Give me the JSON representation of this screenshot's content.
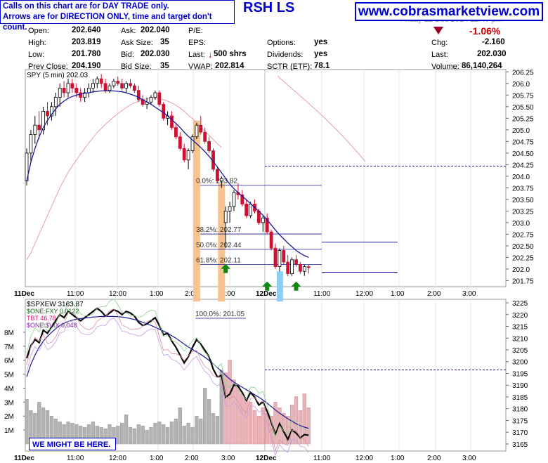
{
  "header": {
    "note_line1": "Calls on this chart are for DAY TRADE only.",
    "note_line2": "Arrows are for DIRECTION ONLY, time and target don't count.",
    "title_fragment": "RSH LS",
    "site": "www.cobrasmarketview.com",
    "date_fragment": "Friday 12 Dec 2014 12:4? pm"
  },
  "quote": {
    "open_label": "Open:",
    "open": "202.640",
    "high_label": "High:",
    "high": "203.819",
    "low_label": "Low:",
    "low": "201.780",
    "prev_label": "Prev Close:",
    "prev": "204.190",
    "ask_label": "Ask:",
    "ask": "202.040",
    "asksize_label": "Ask Size:",
    "asksize": "35",
    "bid_label": "Bid:",
    "bid": "202.030",
    "bidsize_label": "Bid Size:",
    "bidsize": "35",
    "pe_label": "P/E:",
    "eps_label": "EPS:",
    "last_label": "Last:",
    "last_size": "500 shrs",
    "vwap_label": "VWAP:",
    "vwap": "202.814",
    "options_label": "Options:",
    "options": "yes",
    "dividends_label": "Dividends:",
    "dividends": "yes",
    "sctr_label": "SCTR (ETF):",
    "sctr": "78.1",
    "chg_pct": "-1.06%",
    "chg_label": "Chg:",
    "chg": "-2.160",
    "last2_label": "Last:",
    "last2": "202.030",
    "volume_label": "Volume:",
    "volume": "86,140,264"
  },
  "colors": {
    "up": "#ffffff",
    "down": "#cc1133",
    "ma": "#1a1a99",
    "ma_slow": "#e2a0a8",
    "accent": "#0000cc",
    "orange": "#f7c48f",
    "blue": "#8ecdf0",
    "green": "#118811",
    "vol_grey": "#b3b3b3",
    "vol_pink": "#e9b3b8"
  },
  "chart_data": [
    {
      "type": "candlestick",
      "legend": "SPY (5 min) 202.03",
      "y_ticks": [
        201.75,
        202.0,
        202.25,
        202.5,
        202.75,
        203.0,
        203.25,
        203.5,
        203.75,
        204.0,
        204.25,
        204.5,
        204.75,
        205.0,
        205.25,
        205.5,
        205.75,
        206.0,
        206.25
      ],
      "y_tick_labels": [
        "201.75",
        "202.0",
        "202.25",
        "202.50",
        "202.75",
        "203.0",
        "203.25",
        "203.50",
        "203.75",
        "204.0",
        "204.25",
        "204.50",
        "204.75",
        "205.0",
        "205.25",
        "205.50",
        "205.75",
        "206.0",
        "206.25"
      ],
      "ylim": [
        201.62,
        206.3
      ],
      "x_labels": [
        "11Dec",
        "11:00",
        "12:00",
        "1:00",
        "2:00",
        "3:00",
        "12Dec",
        "11:00",
        "12:00",
        "1:00",
        "2:00",
        "3:00"
      ],
      "fib_labels": [
        "0.0%: 203.82",
        "38.2%: 202.77",
        "50.0%: 202.44",
        "61.8%: 202.11",
        "100.0%: 201.05"
      ],
      "fib_values": [
        203.82,
        202.77,
        202.44,
        202.11,
        201.05
      ],
      "ref_lines": [
        204.22,
        202.58,
        201.93
      ],
      "candles": [
        [
          203.9,
          204.6,
          203.8,
          204.5
        ],
        [
          204.5,
          205.0,
          204.3,
          204.9
        ],
        [
          204.9,
          205.3,
          204.7,
          205.1
        ],
        [
          205.1,
          205.4,
          204.8,
          205.0
        ],
        [
          205.0,
          205.5,
          204.9,
          205.4
        ],
        [
          205.4,
          205.6,
          205.1,
          205.3
        ],
        [
          205.3,
          205.6,
          205.2,
          205.5
        ],
        [
          205.5,
          205.8,
          205.3,
          205.7
        ],
        [
          205.7,
          206.0,
          205.5,
          205.9
        ],
        [
          205.9,
          206.05,
          205.7,
          205.8
        ],
        [
          205.8,
          206.1,
          205.7,
          206.0
        ],
        [
          206.0,
          206.1,
          205.8,
          205.9
        ],
        [
          205.9,
          206.0,
          205.7,
          205.8
        ],
        [
          205.8,
          205.9,
          205.6,
          205.7
        ],
        [
          205.7,
          205.9,
          205.6,
          205.8
        ],
        [
          205.8,
          206.0,
          205.7,
          205.9
        ],
        [
          205.9,
          206.1,
          205.8,
          206.0
        ],
        [
          206.0,
          206.15,
          205.9,
          206.1
        ],
        [
          206.1,
          206.2,
          205.9,
          206.0
        ],
        [
          206.0,
          206.1,
          205.8,
          205.85
        ],
        [
          205.85,
          206.0,
          205.8,
          205.95
        ],
        [
          205.95,
          206.1,
          205.9,
          206.05
        ],
        [
          206.05,
          206.15,
          205.95,
          206.0
        ],
        [
          206.0,
          206.1,
          205.85,
          205.9
        ],
        [
          205.9,
          206.05,
          205.8,
          206.0
        ],
        [
          206.0,
          206.1,
          205.9,
          205.95
        ],
        [
          205.95,
          206.0,
          205.8,
          205.85
        ],
        [
          205.85,
          205.95,
          205.6,
          205.65
        ],
        [
          205.65,
          205.75,
          205.5,
          205.55
        ],
        [
          205.55,
          205.7,
          205.45,
          205.6
        ],
        [
          205.6,
          205.75,
          205.55,
          205.7
        ],
        [
          205.7,
          205.85,
          205.65,
          205.8
        ],
        [
          205.8,
          205.85,
          205.5,
          205.55
        ],
        [
          205.55,
          205.6,
          205.2,
          205.25
        ],
        [
          205.25,
          205.4,
          205.1,
          205.3
        ],
        [
          205.3,
          205.4,
          205.0,
          205.05
        ],
        [
          205.05,
          205.15,
          204.8,
          204.85
        ],
        [
          204.85,
          204.95,
          204.55,
          204.6
        ],
        [
          204.6,
          204.7,
          204.3,
          204.35
        ],
        [
          204.35,
          204.6,
          204.15,
          204.55
        ],
        [
          204.55,
          204.9,
          204.5,
          204.85
        ],
        [
          204.85,
          205.15,
          204.8,
          205.1
        ],
        [
          205.1,
          205.3,
          204.9,
          204.95
        ],
        [
          204.95,
          205.05,
          204.7,
          204.75
        ],
        [
          204.75,
          204.85,
          204.5,
          204.55
        ],
        [
          204.55,
          204.6,
          204.1,
          204.15
        ],
        [
          204.15,
          204.2,
          203.85,
          203.9
        ],
        [
          203.9,
          204.0,
          203.75,
          203.95
        ],
        [
          203.0,
          203.35,
          202.45,
          203.25
        ],
        [
          203.25,
          203.45,
          203.0,
          203.35
        ],
        [
          203.35,
          203.7,
          203.25,
          203.65
        ],
        [
          203.65,
          203.85,
          203.5,
          203.6
        ],
        [
          203.6,
          203.7,
          203.35,
          203.4
        ],
        [
          203.4,
          203.5,
          203.1,
          203.15
        ],
        [
          203.15,
          203.45,
          203.1,
          203.4
        ],
        [
          203.4,
          203.5,
          203.2,
          203.25
        ],
        [
          203.25,
          203.3,
          202.95,
          203.0
        ],
        [
          203.0,
          203.15,
          202.8,
          203.1
        ],
        [
          203.1,
          203.2,
          202.75,
          202.8
        ],
        [
          202.8,
          202.85,
          202.4,
          202.45
        ],
        [
          202.45,
          202.55,
          202.0,
          202.05
        ],
        [
          202.05,
          202.45,
          201.95,
          202.4
        ],
        [
          202.4,
          202.5,
          202.1,
          202.15
        ],
        [
          202.15,
          202.3,
          201.85,
          201.9
        ],
        [
          201.9,
          202.25,
          201.85,
          202.2
        ],
        [
          202.2,
          202.3,
          202.05,
          202.1
        ],
        [
          202.1,
          202.15,
          201.9,
          201.95
        ],
        [
          201.95,
          202.1,
          201.85,
          202.05
        ],
        [
          202.05,
          202.1,
          201.9,
          202.03
        ]
      ],
      "ma_fast": [
        203.9,
        204.3,
        204.6,
        204.85,
        205.05,
        205.2,
        205.33,
        205.45,
        205.55,
        205.62,
        205.68,
        205.72,
        205.75,
        205.77,
        205.79,
        205.8,
        205.82,
        205.83,
        205.84,
        205.84,
        205.84,
        205.84,
        205.83,
        205.82,
        205.8,
        205.77,
        205.74,
        205.7,
        205.65,
        205.6,
        205.55,
        205.49,
        205.43,
        205.37,
        205.3,
        205.22,
        205.14,
        205.05,
        204.95,
        204.86,
        204.78,
        204.7,
        204.62,
        204.53,
        204.43,
        204.32,
        204.2,
        204.08,
        203.95,
        203.83,
        203.73,
        203.65,
        203.57,
        203.49,
        203.41,
        203.33,
        203.25,
        203.16,
        203.06,
        202.95,
        202.84,
        202.74,
        202.65,
        202.56,
        202.48,
        202.4,
        202.34,
        202.29,
        202.25
      ],
      "ma_slow": [
        202.2,
        202.35,
        202.55,
        202.75,
        202.95,
        203.15,
        203.35,
        203.55,
        203.75,
        203.92,
        204.08,
        204.22,
        204.35,
        204.48,
        204.6,
        204.72,
        204.83,
        204.94,
        205.03,
        205.12,
        205.2,
        205.28,
        205.35,
        205.42,
        205.48,
        205.54,
        205.58,
        205.62,
        205.65,
        205.67,
        205.68,
        205.68,
        205.67,
        205.65,
        205.62,
        205.58,
        205.53,
        205.47,
        205.4,
        205.32,
        205.24,
        205.15,
        205.06,
        204.97,
        204.88,
        204.79,
        204.7,
        204.62
      ],
      "arrows_up": [
        [
          48,
          202.11
        ],
        [
          58,
          201.73
        ],
        [
          65,
          201.73
        ]
      ],
      "orange_bars": [
        [
          41,
          205.2,
          201.3
        ],
        [
          47,
          203.85,
          201.3
        ]
      ],
      "blue_bars": [
        [
          61,
          201.95,
          201.3
        ]
      ]
    },
    {
      "type": "line+volume",
      "legend": [
        "$SPXEW 3163.87",
        "$ONE:FXY 0.0122",
        "TBT 46.78",
        "$ONE:$VIX 0.048"
      ],
      "y_ticks": [
        3165,
        3170,
        3175,
        3180,
        3185,
        3190,
        3195,
        3200,
        3205,
        3210,
        3215,
        3220,
        3225
      ],
      "ylim": [
        3162,
        3226.5
      ],
      "vol_ticks": [
        "1M",
        "2M",
        "3M",
        "4M",
        "5M",
        "6M",
        "7M",
        "8M"
      ],
      "ref_line": 3196.5,
      "volumes_m": [
        3.2,
        2.4,
        2.2,
        3.0,
        2.6,
        2.4,
        2.0,
        1.8,
        1.6,
        1.4,
        1.6,
        1.5,
        1.4,
        1.3,
        1.2,
        1.4,
        1.6,
        1.3,
        1.2,
        1.1,
        1.4,
        1.2,
        1.3,
        1.5,
        2.1,
        1.2,
        1.1,
        1.4,
        1.3,
        1.0,
        1.2,
        1.5,
        1.6,
        1.4,
        1.2,
        1.6,
        1.8,
        2.6,
        1.3,
        1.5,
        1.2,
        2.0,
        1.8,
        4.0,
        3.2,
        2.2,
        2.0,
        5.3,
        5.1,
        6.0,
        4.6,
        4.2,
        3.6,
        3.2,
        3.0,
        2.4,
        2.0,
        2.6,
        2.2,
        2.0,
        3.0,
        2.6,
        2.2,
        2.0,
        2.8,
        3.4,
        2.4,
        3.6,
        2.6
      ]
    }
  ],
  "annotation": {
    "we_might": "WE MIGHT BE HERE."
  }
}
